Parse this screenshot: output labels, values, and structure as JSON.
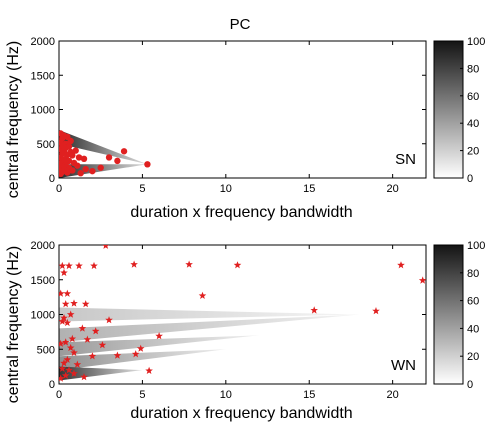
{
  "title": "PC",
  "chart_data": [
    {
      "type": "scatter",
      "panel_label": "SN",
      "xlabel": "duration x frequency bandwidth",
      "ylabel": "central frequency (Hz)",
      "xlim": [
        0,
        22
      ],
      "ylim": [
        0,
        2000
      ],
      "xticks": [
        "0",
        "5",
        "10",
        "15",
        "20"
      ],
      "yticks": [
        "0",
        "500",
        "1000",
        "1500",
        "2000"
      ],
      "marker": "dot",
      "marker_color": "#e02020",
      "colorbar": {
        "range": [
          0,
          100
        ],
        "ticks": [
          "0",
          "20",
          "40",
          "60",
          "80",
          "100"
        ]
      },
      "density_wedges": [
        {
          "x0": 0,
          "y0": 600,
          "x1": 5.3,
          "y1": 200,
          "level": 0.95
        },
        {
          "x0": 0,
          "y0": 100,
          "x1": 5.3,
          "y1": 200,
          "level": 0.95
        }
      ],
      "points": [
        [
          0.1,
          650
        ],
        [
          0.3,
          620
        ],
        [
          0.2,
          580
        ],
        [
          0.5,
          600
        ],
        [
          0.1,
          520
        ],
        [
          0.4,
          500
        ],
        [
          0.2,
          470
        ],
        [
          0.6,
          460
        ],
        [
          0.1,
          420
        ],
        [
          0.3,
          400
        ],
        [
          0.7,
          380
        ],
        [
          1.0,
          400
        ],
        [
          0.2,
          360
        ],
        [
          0.5,
          340
        ],
        [
          0.8,
          330
        ],
        [
          0.1,
          300
        ],
        [
          0.4,
          280
        ],
        [
          1.2,
          300
        ],
        [
          0.2,
          260
        ],
        [
          0.6,
          250
        ],
        [
          1.5,
          280
        ],
        [
          0.3,
          230
        ],
        [
          0.1,
          210
        ],
        [
          0.9,
          220
        ],
        [
          0.4,
          190
        ],
        [
          0.2,
          170
        ],
        [
          1.1,
          180
        ],
        [
          0.6,
          150
        ],
        [
          0.1,
          140
        ],
        [
          0.3,
          120
        ],
        [
          1.6,
          130
        ],
        [
          0.8,
          110
        ],
        [
          0.2,
          90
        ],
        [
          0.5,
          80
        ],
        [
          1.3,
          70
        ],
        [
          0.1,
          60
        ],
        [
          2.0,
          100
        ],
        [
          2.5,
          150
        ],
        [
          3.0,
          300
        ],
        [
          3.5,
          250
        ],
        [
          3.9,
          390
        ],
        [
          5.3,
          200
        ],
        [
          0.4,
          440
        ],
        [
          0.7,
          540
        ]
      ]
    },
    {
      "type": "scatter",
      "panel_label": "WN",
      "xlabel": "duration x frequency bandwidth",
      "ylabel": "central frequency (Hz)",
      "xlim": [
        0,
        22
      ],
      "ylim": [
        0,
        2000
      ],
      "xticks": [
        "0",
        "5",
        "10",
        "15",
        "20"
      ],
      "yticks": [
        "0",
        "500",
        "1000",
        "1500",
        "2000"
      ],
      "marker": "star",
      "marker_color": "#e02020",
      "colorbar": {
        "range": [
          0,
          100
        ],
        "ticks": [
          "0",
          "20",
          "40",
          "60",
          "80",
          "100"
        ]
      },
      "density_wedges": [
        {
          "x0": 0,
          "y0": 1000,
          "x1": 18,
          "y1": 1000,
          "level": 0.25
        },
        {
          "x0": 0,
          "y0": 700,
          "x1": 18,
          "y1": 1000,
          "level": 0.35
        },
        {
          "x0": 0,
          "y0": 500,
          "x1": 12,
          "y1": 700,
          "level": 0.45
        },
        {
          "x0": 0,
          "y0": 300,
          "x1": 10,
          "y1": 500,
          "level": 0.5
        },
        {
          "x0": 0,
          "y0": 150,
          "x1": 5,
          "y1": 200,
          "level": 0.9
        }
      ],
      "points": [
        [
          0.2,
          1700
        ],
        [
          0.6,
          1700
        ],
        [
          1.2,
          1700
        ],
        [
          2.1,
          1700
        ],
        [
          0.3,
          1600
        ],
        [
          0.5,
          1300
        ],
        [
          0.1,
          1300
        ],
        [
          0.4,
          1150
        ],
        [
          0.9,
          1160
        ],
        [
          1.6,
          1150
        ],
        [
          0.7,
          1000
        ],
        [
          0.3,
          950
        ],
        [
          0.2,
          900
        ],
        [
          0.5,
          880
        ],
        [
          1.4,
          800
        ],
        [
          2.2,
          760
        ],
        [
          3.0,
          920
        ],
        [
          0.8,
          650
        ],
        [
          1.7,
          640
        ],
        [
          0.4,
          600
        ],
        [
          0.1,
          580
        ],
        [
          0.9,
          450
        ],
        [
          2.0,
          400
        ],
        [
          0.5,
          350
        ],
        [
          0.3,
          300
        ],
        [
          1.1,
          280
        ],
        [
          0.2,
          220
        ],
        [
          0.6,
          200
        ],
        [
          0.9,
          150
        ],
        [
          0.4,
          120
        ],
        [
          1.5,
          100
        ],
        [
          0.1,
          80
        ],
        [
          2.8,
          1990
        ],
        [
          4.5,
          1720
        ],
        [
          7.8,
          1720
        ],
        [
          10.7,
          1710
        ],
        [
          8.6,
          1270
        ],
        [
          15.3,
          1060
        ],
        [
          19.0,
          1050
        ],
        [
          20.5,
          1710
        ],
        [
          21.8,
          1490
        ],
        [
          6.0,
          690
        ],
        [
          4.9,
          510
        ],
        [
          4.6,
          430
        ],
        [
          3.5,
          410
        ],
        [
          5.4,
          190
        ],
        [
          0.7,
          520
        ],
        [
          2.6,
          560
        ]
      ]
    }
  ]
}
